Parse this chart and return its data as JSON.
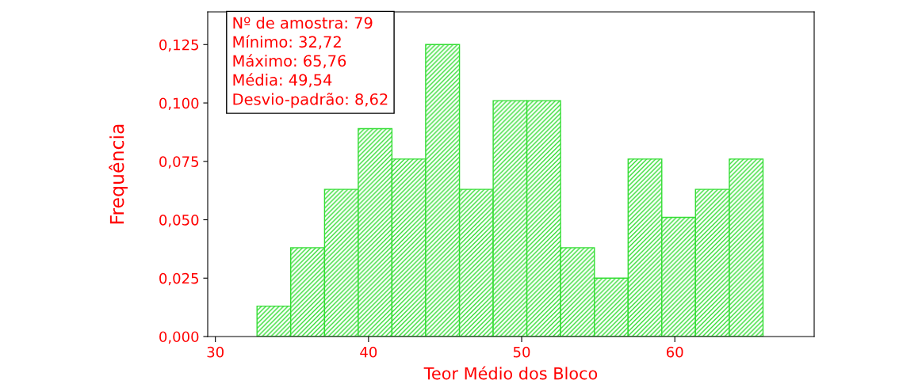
{
  "chart_data": {
    "type": "histogram",
    "xlabel": "Teor Médio dos Bloco",
    "ylabel": "Frequência",
    "bins": [
      32.72,
      34.92,
      37.13,
      39.33,
      41.53,
      43.73,
      45.94,
      48.14,
      50.34,
      52.54,
      54.75,
      56.95,
      59.15,
      61.35,
      63.56,
      65.76
    ],
    "values": [
      0.013,
      0.038,
      0.063,
      0.089,
      0.076,
      0.125,
      0.063,
      0.101,
      0.101,
      0.038,
      0.025,
      0.076,
      0.051,
      0.063,
      0.076
    ],
    "color": "#33dd33",
    "xlim": [
      29.5,
      69.1
    ],
    "ylim": [
      0,
      0.139
    ],
    "xticks": [
      30,
      40,
      50,
      60
    ],
    "yticks": [
      {
        "value": 0,
        "label": "0,000"
      },
      {
        "value": 0.025,
        "label": "0,025"
      },
      {
        "value": 0.05,
        "label": "0,050"
      },
      {
        "value": 0.075,
        "label": "0,075"
      },
      {
        "value": 0.1,
        "label": "0,100"
      },
      {
        "value": 0.125,
        "label": "0,125"
      }
    ],
    "annotations": [
      "Nº de amostra: 79",
      "Mínimo: 32,72",
      "Máximo: 65,76",
      "Média: 49,54",
      "Desvio-padrão: 8,62"
    ],
    "grid": false,
    "legend": false
  }
}
